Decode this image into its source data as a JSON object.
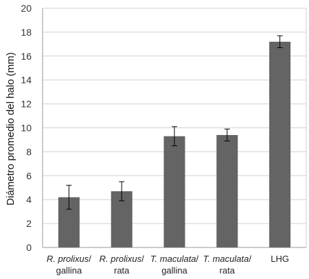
{
  "chart_data": {
    "type": "bar",
    "title": "",
    "xlabel": "",
    "ylabel": "Diámetro promedio del halo (mm)",
    "ylim": [
      0,
      20
    ],
    "yticks": [
      0,
      2,
      4,
      6,
      8,
      10,
      12,
      14,
      16,
      18,
      20
    ],
    "grid": true,
    "categories": [
      {
        "line1": "R. prolixus/",
        "line1_italic": "R. prolixus",
        "line1_rest": "/",
        "line2": "gallina"
      },
      {
        "line1": "R. prolixus/",
        "line1_italic": "R. prolixus",
        "line1_rest": "/",
        "line2": "rata"
      },
      {
        "line1": "T. maculata/",
        "line1_italic": "T. maculata",
        "line1_rest": "/",
        "line2": "gallina"
      },
      {
        "line1": "T. maculata/",
        "line1_italic": "T. maculata",
        "line1_rest": "/",
        "line2": "rata"
      },
      {
        "line1": "LHG",
        "line1_italic": "",
        "line1_rest": "LHG",
        "line2": ""
      }
    ],
    "series": [
      {
        "values": [
          4.2,
          4.7,
          9.3,
          9.4,
          17.2
        ],
        "error": [
          1.0,
          0.8,
          0.8,
          0.5,
          0.5
        ],
        "color": "#646464"
      }
    ]
  }
}
